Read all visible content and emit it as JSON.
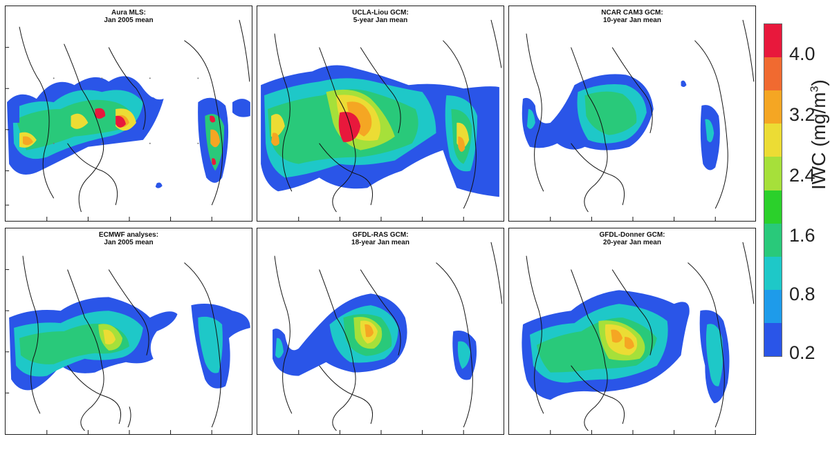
{
  "panels": [
    {
      "id": "aura-mls",
      "line1": "Aura MLS:",
      "line2": "Jan 2005 mean"
    },
    {
      "id": "ucla-liou",
      "line1": "UCLA-Liou GCM:",
      "line2": "5-year Jan mean"
    },
    {
      "id": "ncar-cam3",
      "line1": "NCAR CAM3 GCM:",
      "line2": "10-year Jan mean"
    },
    {
      "id": "ecmwf",
      "line1": "ECMWF analyses:",
      "line2": "Jan 2005 mean"
    },
    {
      "id": "gfdl-ras",
      "line1": "GFDL-RAS GCM:",
      "line2": "18-year Jan mean"
    },
    {
      "id": "gfdl-donner",
      "line1": "GFDL-Donner GCM:",
      "line2": "20-year Jan mean"
    }
  ],
  "colorbar": {
    "title": "IWC",
    "unit": "(mg/m",
    "unit_sup": "3",
    "unit_close": ")",
    "tick_labels": [
      "4.0",
      "3.2",
      "2.4",
      "1.6",
      "0.8",
      "0.2"
    ],
    "colors": [
      "#e8183c",
      "#f06a30",
      "#f5a623",
      "#ecdc34",
      "#a6e03a",
      "#2bd02b",
      "#29c97a",
      "#1ec8c8",
      "#1e9bea",
      "#2a55e8"
    ]
  }
}
